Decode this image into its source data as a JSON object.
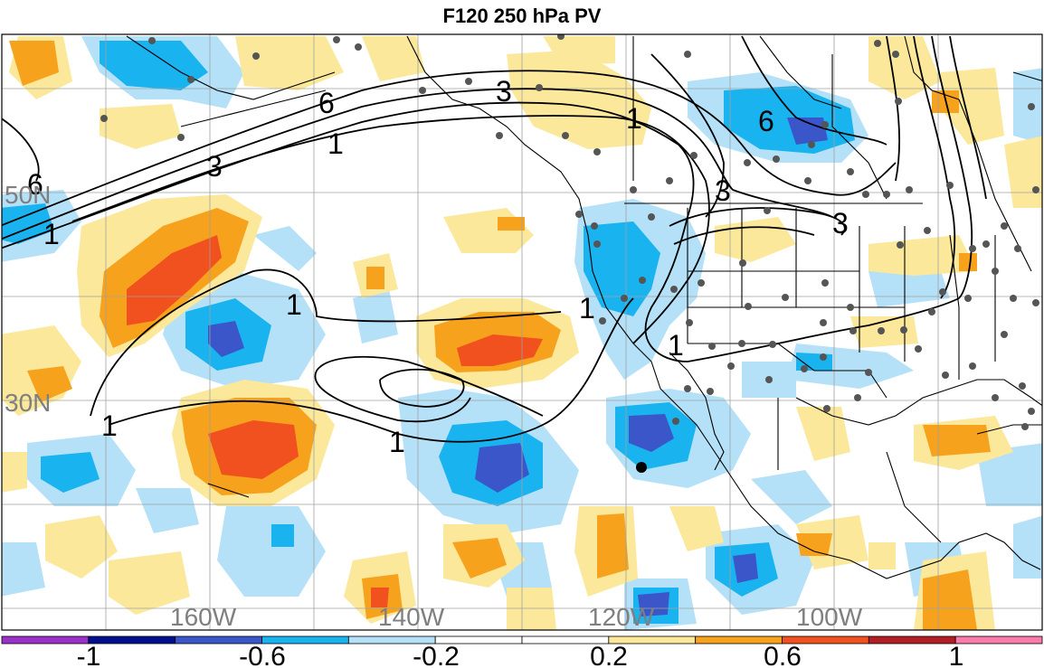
{
  "title": "F120 250 hPa PV",
  "map": {
    "latitude_labels": [
      "50N",
      "30N"
    ],
    "longitude_labels": [
      "160W",
      "140W",
      "120W",
      "100W"
    ],
    "contour_labels": [
      "6",
      "3",
      "1",
      "6",
      "3",
      "1",
      "6",
      "3",
      "3",
      "1",
      "1",
      "1",
      "1",
      "1",
      "1"
    ]
  },
  "colorbar": {
    "colors": [
      "#9b30c8",
      "#000f8c",
      "#3a56c8",
      "#19b4f0",
      "#b4e1f8",
      "#ffffff",
      "#ffffff",
      "#fbe89a",
      "#f7a21c",
      "#f0511e",
      "#b11e23",
      "#f87ba8"
    ],
    "tick_labels": [
      "-1",
      "-0.6",
      "-0.2",
      "0.2",
      "0.6",
      "1"
    ]
  },
  "colors": {
    "land_outline": "#000000",
    "station_dot": "#555555",
    "grid": "#a0a0a0"
  }
}
